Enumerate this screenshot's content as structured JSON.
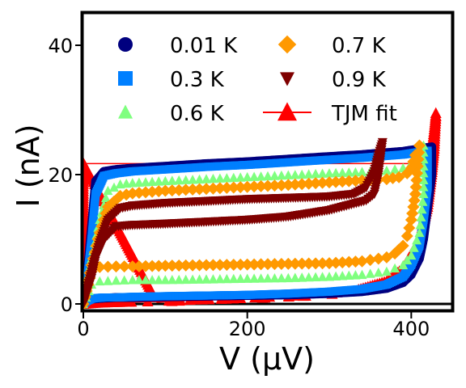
{
  "chart_data": {
    "type": "scatter",
    "xlabel": "V (μV)",
    "ylabel": "I (nA)",
    "xlim": [
      0,
      450
    ],
    "ylim": [
      -1,
      45
    ],
    "xticks": [
      "0",
      "200",
      "400"
    ],
    "yticks": [
      "0",
      "20",
      "40"
    ],
    "grid": false,
    "legend_position": "top",
    "series": [
      {
        "name": "0.01 K",
        "marker": "circle",
        "color": "#00007f",
        "x": [
          0,
          5,
          10,
          15,
          25,
          40,
          60,
          100,
          150,
          200,
          250,
          300,
          340,
          370,
          390,
          400,
          405,
          410,
          415,
          420,
          425,
          425,
          420,
          415,
          410,
          400,
          390,
          370,
          340,
          300,
          250,
          200,
          150,
          100,
          60,
          40,
          25,
          15,
          10,
          5,
          0
        ],
        "y": [
          0,
          5,
          12,
          19,
          20.5,
          20.8,
          21,
          21.3,
          21.7,
          22,
          22.4,
          22.8,
          23.1,
          23.4,
          23.6,
          23.8,
          23.9,
          24,
          24.1,
          24.2,
          24.3,
          20,
          15,
          10,
          7,
          4.5,
          3.3,
          2.4,
          1.9,
          1.6,
          1.4,
          1.3,
          1.2,
          1.1,
          1.0,
          1.0,
          0.9,
          0.8,
          0.7,
          0.5,
          0
        ]
      },
      {
        "name": "0.3 K",
        "marker": "square",
        "color": "#007fff",
        "x": [
          0,
          5,
          10,
          15,
          25,
          40,
          60,
          100,
          150,
          200,
          250,
          300,
          340,
          370,
          390,
          400,
          405,
          410,
          415,
          420,
          420,
          415,
          410,
          400,
          390,
          370,
          340,
          300,
          250,
          200,
          150,
          100,
          60,
          40,
          25,
          15,
          10,
          5,
          0
        ],
        "y": [
          0,
          4,
          10,
          17,
          19.8,
          20.2,
          20.5,
          20.8,
          21.2,
          21.5,
          21.9,
          22.3,
          22.6,
          22.9,
          23.1,
          23.3,
          23.4,
          23.5,
          23.6,
          23.7,
          18,
          13,
          9,
          6,
          4.2,
          3,
          2.3,
          1.9,
          1.6,
          1.4,
          1.3,
          1.2,
          1.1,
          1.0,
          1.0,
          0.9,
          0.8,
          0.5,
          0
        ]
      },
      {
        "name": "0.6 K",
        "marker": "triangle-up",
        "color": "#7fff7f",
        "x": [
          0,
          10,
          20,
          30,
          45,
          60,
          100,
          150,
          200,
          250,
          300,
          340,
          370,
          390,
          400,
          410,
          415,
          415,
          410,
          400,
          390,
          370,
          340,
          300,
          250,
          200,
          150,
          100,
          60,
          40,
          20,
          10,
          0
        ],
        "y": [
          0,
          7,
          13,
          17.5,
          18.5,
          18.7,
          19,
          19.3,
          19.6,
          19.9,
          20.2,
          20.4,
          20.6,
          21,
          21.8,
          23.5,
          24.5,
          17,
          11,
          7.5,
          6,
          5,
          4.5,
          4.2,
          4,
          3.9,
          3.8,
          3.7,
          3.7,
          3.6,
          3.5,
          3,
          0
        ]
      },
      {
        "name": "0.7 K",
        "marker": "diamond",
        "color": "#ff9900",
        "x": [
          0,
          10,
          20,
          30,
          45,
          60,
          100,
          150,
          200,
          250,
          300,
          340,
          370,
          385,
          395,
          400,
          405,
          410,
          405,
          400,
          395,
          390,
          380,
          370,
          340,
          300,
          250,
          200,
          150,
          100,
          60,
          40,
          20,
          10,
          0
        ],
        "y": [
          0,
          6,
          11,
          15,
          16.7,
          17.1,
          17.5,
          17.8,
          18.1,
          18.4,
          18.8,
          19.1,
          19.3,
          19.6,
          20.2,
          21,
          23,
          24.5,
          17,
          13,
          10.5,
          9,
          7.8,
          7.2,
          6.6,
          6.3,
          6.2,
          6.1,
          6,
          5.9,
          5.8,
          5.8,
          5.7,
          5,
          0
        ]
      },
      {
        "name": "0.9 K",
        "marker": "triangle-down",
        "color": "#7f0000",
        "x": [
          0,
          10,
          20,
          30,
          45,
          60,
          100,
          150,
          200,
          250,
          300,
          330,
          345,
          355,
          360,
          365,
          360,
          355,
          345,
          330,
          300,
          250,
          200,
          150,
          100,
          60,
          40,
          25,
          15,
          10,
          5,
          0
        ],
        "y": [
          0,
          5,
          9.5,
          13,
          14.8,
          15.2,
          15.6,
          15.9,
          16.2,
          16.4,
          16.6,
          17,
          18,
          20.5,
          23,
          25,
          20,
          17,
          16,
          15.5,
          14.5,
          13.5,
          13,
          12.7,
          12.4,
          12.2,
          12,
          10,
          7,
          4,
          2,
          0
        ]
      },
      {
        "name": "TJM fit",
        "marker": "triangle-up-line",
        "color": "#ff0000",
        "x": [
          0,
          0,
          0,
          0,
          90,
          120,
          130,
          140,
          190,
          230,
          280,
          330,
          360,
          380,
          395,
          405,
          412,
          418,
          422,
          425,
          428,
          430,
          430,
          428,
          425,
          420,
          410,
          390,
          370,
          330,
          280,
          230,
          180,
          130,
          90,
          50,
          20,
          0
        ],
        "y": [
          0,
          10,
          21.5,
          21.8,
          0.3,
          0.5,
          0.6,
          0.7,
          0.8,
          1.0,
          1.3,
          1.8,
          2.5,
          3.5,
          5,
          7.5,
          11,
          15,
          20,
          24,
          27,
          29.5,
          29,
          24,
          20,
          15,
          10,
          5.5,
          3.5,
          2,
          1.4,
          1.1,
          0.8,
          0.6,
          0.4,
          0.3,
          0.2,
          0
        ]
      }
    ],
    "annotations": {
      "hline_red_y": 21.7,
      "hline_black_y": 0
    }
  }
}
